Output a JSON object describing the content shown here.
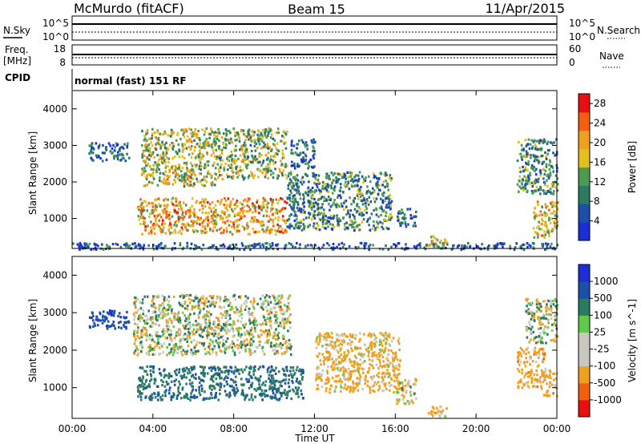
{
  "header": {
    "station": "McMurdo (fitACF)",
    "beam": "Beam 15",
    "date": "11/Apr/2015"
  },
  "strip_noise": {
    "left_label": "N.Sky",
    "right_label": "N.Search",
    "left_ticks": [
      "10^5",
      "10^0"
    ],
    "right_ticks": [
      "10^5",
      "10^0"
    ]
  },
  "strip_freq": {
    "left_label_1": "Freq.",
    "left_label_2": "[MHz]",
    "right_label": "Nave",
    "left_ticks": [
      "18",
      "8"
    ],
    "right_ticks": [
      "60",
      "0"
    ]
  },
  "cpid": {
    "label": "CPID",
    "value": "normal (fast) 151 RF"
  },
  "panels": {
    "ylabel": "Slant Range [km]",
    "xlabel": "Time UT",
    "yticks": [
      "4000",
      "3000",
      "2000",
      "1000"
    ],
    "xticks": [
      "00:00",
      "04:00",
      "08:00",
      "12:00",
      "16:00",
      "20:00",
      "00:00"
    ]
  },
  "colors": {
    "power_scale": [
      "#1c2fd6",
      "#1c4fa8",
      "#2a7b62",
      "#4f9a52",
      "#e3c020",
      "#f0a020",
      "#f06010",
      "#e81010"
    ],
    "velocity_scale": [
      "#e81010",
      "#f06010",
      "#f0a020",
      "#c8c8c0",
      "#c8c8c0",
      "#5ec94a",
      "#2a7b62",
      "#1c4fa8",
      "#1c2fd6"
    ]
  },
  "chart_data": [
    {
      "type": "heatmap",
      "title": "",
      "quantity": "Power",
      "xlabel": "Time UT",
      "ylabel": "Slant Range [km]",
      "xlim": [
        "00:00",
        "24:00"
      ],
      "ylim": [
        180,
        4500
      ],
      "colorbar": {
        "label": "Power [dB]",
        "ticks": [
          4,
          8,
          12,
          16,
          20,
          24,
          28
        ],
        "tick_labels": [
          "4",
          "8",
          "12",
          "16",
          "20",
          "24",
          "28"
        ],
        "range": [
          0,
          30
        ]
      },
      "regions": [
        {
          "t0": 0.8,
          "t1": 2.8,
          "r0": 2600,
          "r1": 3100,
          "value": 8
        },
        {
          "t0": 3.4,
          "t1": 7.2,
          "r0": 1900,
          "r1": 3500,
          "value": 16
        },
        {
          "t0": 7.2,
          "t1": 10.6,
          "r0": 2100,
          "r1": 3500,
          "value": 14
        },
        {
          "t0": 10.8,
          "t1": 12.0,
          "r0": 2400,
          "r1": 3200,
          "value": 8
        },
        {
          "t0": 3.2,
          "t1": 10.6,
          "r0": 600,
          "r1": 1600,
          "value": 20
        },
        {
          "t0": 10.6,
          "t1": 15.8,
          "r0": 700,
          "r1": 2300,
          "value": 10
        },
        {
          "t0": 16.0,
          "t1": 17.0,
          "r0": 800,
          "r1": 1300,
          "value": 8
        },
        {
          "t0": 17.6,
          "t1": 18.6,
          "r0": 250,
          "r1": 550,
          "value": 18
        },
        {
          "t0": 22.0,
          "t1": 24.0,
          "r0": 1700,
          "r1": 3200,
          "value": 10
        },
        {
          "t0": 22.8,
          "t1": 24.0,
          "r0": 500,
          "r1": 1500,
          "value": 18
        },
        {
          "t0": 0.0,
          "t1": 24.0,
          "r0": 180,
          "r1": 360,
          "value": 6
        }
      ]
    },
    {
      "type": "heatmap",
      "title": "",
      "quantity": "Velocity",
      "xlabel": "Time UT",
      "ylabel": "Slant Range [km]",
      "xlim": [
        "00:00",
        "24:00"
      ],
      "ylim": [
        180,
        4500
      ],
      "colorbar": {
        "label": "Velocity [m s^-1]",
        "ticks": [
          -1000,
          -500,
          -100,
          -25,
          25,
          100,
          500,
          1000
        ],
        "tick_labels": [
          "-1000",
          "-500",
          "-100",
          "-25",
          "25",
          "100",
          "500",
          "1000"
        ]
      },
      "regions": [
        {
          "t0": 0.8,
          "t1": 2.8,
          "r0": 2600,
          "r1": 3100,
          "value": 800
        },
        {
          "t0": 3.0,
          "t1": 10.8,
          "r0": 1900,
          "r1": 3500,
          "value": 0
        },
        {
          "t0": 3.2,
          "t1": 11.4,
          "r0": 700,
          "r1": 1600,
          "value": 400
        },
        {
          "t0": 12.0,
          "t1": 16.2,
          "r0": 900,
          "r1": 2500,
          "value": -200
        },
        {
          "t0": 16.0,
          "t1": 17.0,
          "r0": 600,
          "r1": 1300,
          "value": -80
        },
        {
          "t0": 17.6,
          "t1": 18.6,
          "r0": 250,
          "r1": 550,
          "value": -150
        },
        {
          "t0": 22.4,
          "t1": 24.0,
          "r0": 2200,
          "r1": 3400,
          "value": 0
        },
        {
          "t0": 22.0,
          "t1": 23.4,
          "r0": 1000,
          "r1": 2100,
          "value": -300
        },
        {
          "t0": 23.2,
          "t1": 24.0,
          "r0": 800,
          "r1": 1500,
          "value": -300
        }
      ]
    }
  ]
}
